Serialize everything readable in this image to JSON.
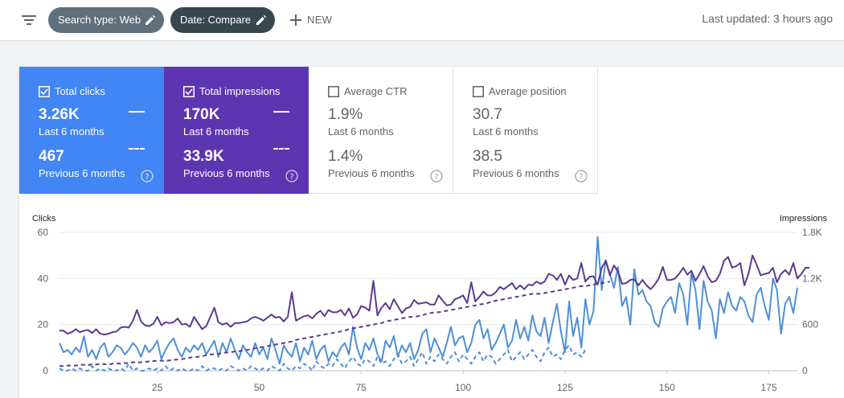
{
  "toolbar": {
    "filter_icon": "filter-list-icon",
    "chips": [
      {
        "label": "Search type: Web",
        "color": "#5f6f7b"
      },
      {
        "label": "Date: Compare",
        "color": "#37474f"
      }
    ],
    "new_label": "NEW",
    "last_updated": "Last updated: 3 hours ago"
  },
  "metrics": [
    {
      "title": "Total clicks",
      "checked": true,
      "value": "3.26K",
      "period": "Last 6 months",
      "prev_value": "467",
      "prev_period": "Previous 6 months",
      "color": "#4285f4"
    },
    {
      "title": "Total impressions",
      "checked": true,
      "value": "170K",
      "period": "Last 6 months",
      "prev_value": "33.9K",
      "prev_period": "Previous 6 months",
      "color": "#5e35b1"
    },
    {
      "title": "Average CTR",
      "checked": false,
      "value": "1.9%",
      "period": "Last 6 months",
      "prev_value": "1.4%",
      "prev_period": "Previous 6 months"
    },
    {
      "title": "Average position",
      "checked": false,
      "value": "30.7",
      "period": "Last 6 months",
      "prev_value": "38.5",
      "prev_period": "Previous 6 months"
    }
  ],
  "chart_data": {
    "type": "line",
    "ylabel": "Clicks",
    "y2label": "Impressions",
    "ylim": [
      0,
      60
    ],
    "y2lim": [
      0,
      1800
    ],
    "yticks": [
      "0",
      "20",
      "40",
      "60"
    ],
    "y2ticks": [
      "0",
      "600",
      "1.2K",
      "1.8K"
    ],
    "xlim": [
      1,
      182
    ],
    "xticks": [
      25,
      50,
      75,
      100,
      125,
      150,
      175
    ],
    "grid": true,
    "series": [
      {
        "name": "Total clicks",
        "axis": "left",
        "style": "solid",
        "color": "#4f8fd8",
        "values": [
          12,
          8,
          9,
          7,
          10,
          8,
          15,
          6,
          9,
          5,
          10,
          12,
          6,
          8,
          11,
          10,
          7,
          9,
          12,
          10,
          6,
          11,
          8,
          10,
          13,
          5,
          9,
          12,
          14,
          9,
          6,
          10,
          8,
          11,
          9,
          12,
          7,
          10,
          13,
          6,
          12,
          8,
          14,
          9,
          5,
          11,
          8,
          6,
          12,
          7,
          10,
          5,
          14,
          9,
          3,
          11,
          8,
          6,
          12,
          4,
          10,
          7,
          13,
          5,
          9,
          11,
          4,
          8,
          6,
          10,
          12,
          7,
          19,
          10,
          5,
          12,
          9,
          14,
          7,
          4,
          13,
          10,
          15,
          6,
          11,
          8,
          12,
          5,
          9,
          16,
          18,
          8,
          14,
          10,
          6,
          12,
          19,
          11,
          14,
          15,
          8,
          12,
          20,
          22,
          14,
          18,
          9,
          12,
          16,
          20,
          10,
          13,
          22,
          14,
          19,
          13,
          24,
          17,
          15,
          23,
          12,
          21,
          29,
          17,
          8,
          30,
          15,
          23,
          10,
          31,
          20,
          26,
          58,
          35,
          48,
          42,
          36,
          45,
          28,
          32,
          20,
          44,
          33,
          35,
          30,
          28,
          21,
          19,
          27,
          30,
          32,
          25,
          38,
          33,
          20,
          42,
          35,
          18,
          39,
          30,
          26,
          14,
          31,
          25,
          34,
          28,
          26,
          32,
          30,
          24,
          21,
          33,
          36,
          28,
          22,
          40,
          35,
          16,
          29,
          32,
          25,
          36
        ]
      },
      {
        "name": "Total impressions",
        "axis": "right",
        "style": "solid",
        "color": "#5b3a8f",
        "values": [
          520,
          520,
          480,
          500,
          540,
          500,
          520,
          530,
          490,
          540,
          480,
          470,
          480,
          500,
          510,
          560,
          570,
          560,
          650,
          790,
          640,
          590,
          580,
          610,
          700,
          590,
          630,
          620,
          630,
          680,
          600,
          610,
          570,
          700,
          620,
          540,
          580,
          700,
          820,
          630,
          600,
          620,
          570,
          620,
          620,
          630,
          640,
          680,
          700,
          680,
          650,
          690,
          730,
          690,
          700,
          640,
          700,
          1020,
          650,
          680,
          710,
          720,
          680,
          740,
          780,
          710,
          790,
          760,
          760,
          790,
          720,
          810,
          690,
          730,
          840,
          820,
          780,
          1170,
          720,
          820,
          880,
          800,
          930,
          840,
          750,
          810,
          830,
          920,
          870,
          880,
          890,
          860,
          860,
          980,
          910,
          850,
          860,
          930,
          950,
          980,
          880,
          1150,
          900,
          960,
          1030,
          980,
          980,
          1020,
          1090,
          1060,
          1100,
          1140,
          1060,
          1110,
          1060,
          1120,
          1110,
          1160,
          1130,
          1160,
          1260,
          1240,
          1180,
          1260,
          1120,
          1240,
          1180,
          1200,
          1400,
          1160,
          1220,
          1230,
          1120,
          1340,
          1430,
          1240,
          1370,
          1290,
          1130,
          1140,
          1180,
          1190,
          1110,
          1180,
          1110,
          1060,
          1120,
          1200,
          1350,
          1180,
          1180,
          1200,
          1260,
          1340,
          1250,
          1300,
          1170,
          1260,
          1360,
          1230,
          1150,
          1170,
          1260,
          1430,
          1480,
          1340,
          1360,
          1400,
          1110,
          1260,
          1500,
          1380,
          1240,
          1260,
          1270,
          1340,
          1150,
          1260,
          1310,
          1250,
          1400,
          1200,
          1260,
          1340,
          1340
        ]
      },
      {
        "name": "Total clicks (Previous 6 months)",
        "axis": "left",
        "style": "dashed",
        "color": "#4f8fd8",
        "values": [
          1,
          0,
          0,
          1,
          0,
          1,
          0,
          0,
          2,
          0,
          1,
          0,
          1,
          0,
          0,
          1,
          0,
          3,
          0,
          1,
          0,
          0,
          1,
          0,
          1,
          0,
          2,
          0,
          1,
          0,
          1,
          0,
          0,
          1,
          0,
          2,
          0,
          1,
          1,
          0,
          1,
          0,
          2,
          1,
          0,
          1,
          0,
          2,
          1,
          0,
          1,
          0,
          2,
          1,
          0,
          3,
          1,
          0,
          2,
          1,
          3,
          2,
          0,
          4,
          2,
          1,
          3,
          2,
          5,
          3,
          1,
          4,
          6,
          3,
          2,
          5,
          4,
          2,
          6,
          3,
          4,
          2,
          5,
          7,
          3,
          4,
          6,
          2,
          5,
          8,
          3,
          6,
          4,
          7,
          5,
          3,
          6,
          8,
          4,
          7,
          5,
          3,
          6,
          8,
          4,
          7,
          6,
          3,
          5,
          7,
          9,
          4,
          6,
          8,
          5,
          7,
          9,
          6,
          4,
          8,
          10,
          6,
          7,
          5,
          9,
          11,
          7,
          8,
          6,
          9
        ]
      },
      {
        "name": "Total impressions (Previous 6 months)",
        "axis": "right",
        "style": "dashed",
        "color": "#5b3a8f",
        "values": [
          60,
          60,
          65,
          70,
          65,
          80,
          75,
          70,
          85,
          80,
          90,
          85,
          80,
          90,
          95,
          90,
          100,
          95,
          110,
          105,
          110,
          115,
          120,
          125,
          130,
          130,
          125,
          135,
          140,
          145,
          150,
          160,
          170,
          175,
          180,
          190,
          200,
          210,
          215,
          220,
          230,
          235,
          240,
          250,
          255,
          260,
          270,
          280,
          290,
          300,
          310,
          320,
          330,
          340,
          350,
          360,
          370,
          380,
          400,
          410,
          420,
          430,
          440,
          450,
          460,
          470,
          480,
          490,
          500,
          510,
          520,
          540,
          550,
          560,
          570,
          580,
          590,
          600,
          610,
          620,
          640,
          650,
          660,
          670,
          680,
          690,
          700,
          700,
          710,
          720,
          740,
          750,
          760,
          760,
          770,
          780,
          790,
          800,
          810,
          820,
          830,
          840,
          850,
          860,
          870,
          880,
          900,
          910,
          920,
          930,
          940,
          950,
          960,
          970,
          980,
          990,
          1000,
          1000,
          1000,
          1010,
          1020,
          1030,
          1040,
          1050,
          1060,
          1070,
          1080,
          1090,
          1100,
          1100,
          1110,
          1120,
          1130,
          1140,
          1150,
          1160
        ]
      }
    ]
  }
}
